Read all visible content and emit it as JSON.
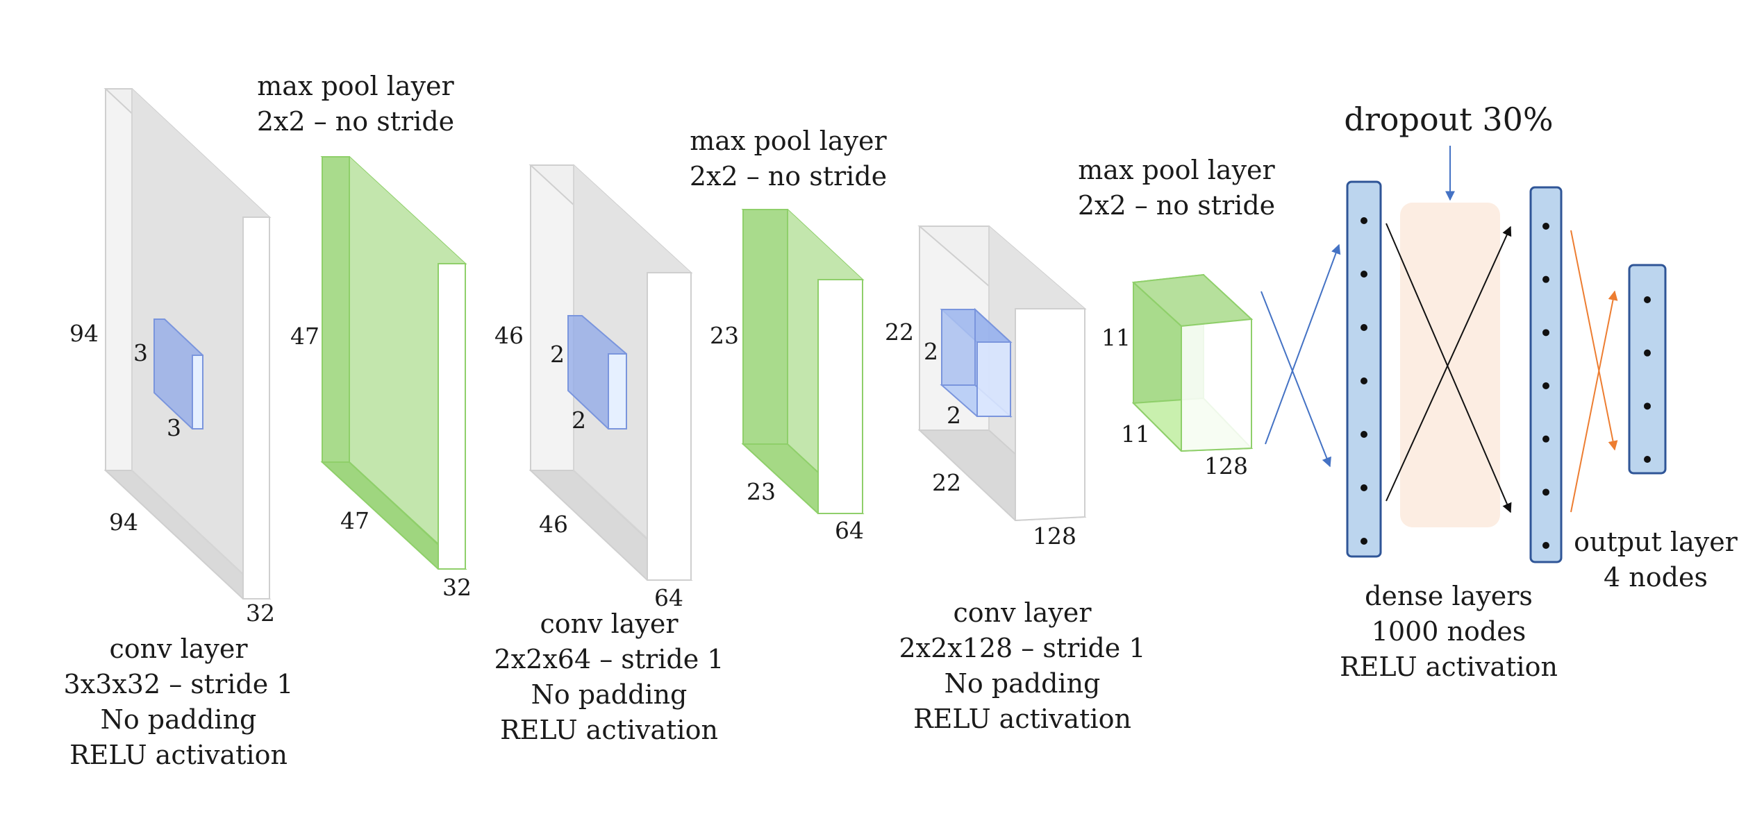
{
  "colors": {
    "gray_box": "#d8d8d8",
    "green_box": "#8fcf6a",
    "blue_kernel": "#8fa8e8",
    "dense_fill": "#bcd5ee",
    "dense_border": "#2f5597",
    "dropout_bg": "#fbe5d6",
    "arrow_blue": "#4472c4",
    "arrow_orange": "#ed7d31"
  },
  "conv1": {
    "height": "94",
    "width": "94",
    "depth": "32",
    "kernel_h": "3",
    "kernel_w": "3",
    "caption": [
      "conv layer",
      "3x3x32 – stride 1",
      "No padding",
      "RELU activation"
    ]
  },
  "pool1": {
    "height": "47",
    "width": "47",
    "depth": "32",
    "caption": [
      "max pool layer",
      "2x2 – no stride"
    ]
  },
  "conv2": {
    "height": "46",
    "width": "46",
    "depth": "64",
    "kernel_h": "2",
    "kernel_w": "2",
    "caption": [
      "conv layer",
      "2x2x64 – stride 1",
      "No padding",
      "RELU activation"
    ]
  },
  "pool2": {
    "height": "23",
    "width": "23",
    "depth": "64",
    "caption": [
      "max pool layer",
      "2x2 – no stride"
    ]
  },
  "conv3": {
    "height": "22",
    "width": "22",
    "depth": "128",
    "kernel_h": "2",
    "kernel_w": "2",
    "caption": [
      "conv layer",
      "2x2x128 – stride 1",
      "No padding",
      "RELU activation"
    ]
  },
  "pool3": {
    "height": "11",
    "width": "11",
    "depth": "128",
    "caption": [
      "max pool layer",
      "2x2 – no stride"
    ]
  },
  "dropout": {
    "label": "dropout 30%"
  },
  "dense": {
    "caption": [
      "dense layers",
      "1000 nodes",
      "RELU activation"
    ],
    "dots_per_column": 7
  },
  "output": {
    "caption": [
      "output layer",
      "4 nodes"
    ],
    "dots": 4
  }
}
